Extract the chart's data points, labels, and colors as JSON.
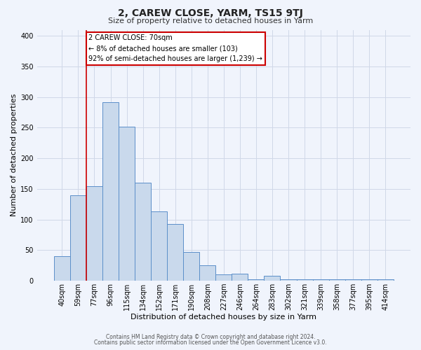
{
  "title": "2, CAREW CLOSE, YARM, TS15 9TJ",
  "subtitle": "Size of property relative to detached houses in Yarm",
  "xlabel": "Distribution of detached houses by size in Yarm",
  "ylabel": "Number of detached properties",
  "footnote1": "Contains HM Land Registry data © Crown copyright and database right 2024.",
  "footnote2": "Contains public sector information licensed under the Open Government Licence v3.0.",
  "bin_labels": [
    "40sqm",
    "59sqm",
    "77sqm",
    "96sqm",
    "115sqm",
    "134sqm",
    "152sqm",
    "171sqm",
    "190sqm",
    "208sqm",
    "227sqm",
    "246sqm",
    "264sqm",
    "283sqm",
    "302sqm",
    "321sqm",
    "339sqm",
    "358sqm",
    "377sqm",
    "395sqm",
    "414sqm"
  ],
  "bar_heights": [
    40,
    140,
    155,
    292,
    252,
    160,
    113,
    93,
    47,
    25,
    10,
    11,
    2,
    8,
    2,
    2,
    2,
    2,
    2,
    2,
    2
  ],
  "bar_color": "#c9d9ec",
  "bar_edge_color": "#5b8fc9",
  "red_line_color": "#cc0000",
  "ylim": [
    0,
    410
  ],
  "yticks": [
    0,
    50,
    100,
    150,
    200,
    250,
    300,
    350,
    400
  ],
  "annotation_box_text": "2 CAREW CLOSE: 70sqm\n← 8% of detached houses are smaller (103)\n92% of semi-detached houses are larger (1,239) →",
  "background_color": "#f0f4fc",
  "grid_color": "#d0d8e8",
  "title_fontsize": 10,
  "subtitle_fontsize": 8,
  "axis_label_fontsize": 8,
  "tick_fontsize": 7,
  "footnote_fontsize": 5.5
}
